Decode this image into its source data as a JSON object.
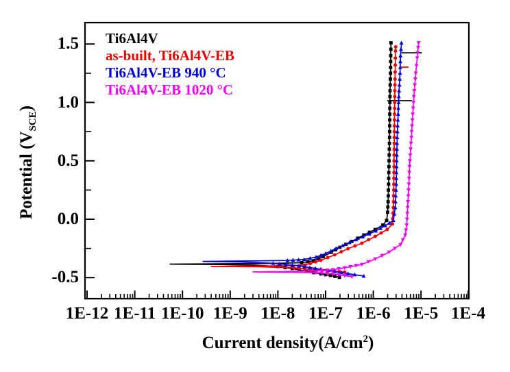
{
  "figure": {
    "background": "#ffffff"
  },
  "axis_titles": {
    "y_main": "Potential (V",
    "y_sub": "SCE",
    "y_close": ")",
    "x_main": "Current density(A/cm",
    "x_sup": "2",
    "x_close": ")"
  },
  "chart_data": {
    "type": "line",
    "title": "",
    "xlabel": "Current density(A/cm^2)",
    "ylabel": "Potential (V_SCE)",
    "x_axis": {
      "scale": "log",
      "min_exp": -12,
      "max_exp": -4,
      "ticks": [
        {
          "exp": -12,
          "label": "1E-12"
        },
        {
          "exp": -11,
          "label": "1E-11"
        },
        {
          "exp": -10,
          "label": "1E-10"
        },
        {
          "exp": -9,
          "label": "1E-9"
        },
        {
          "exp": -8,
          "label": "1E-8"
        },
        {
          "exp": -7,
          "label": "1E-7"
        },
        {
          "exp": -6,
          "label": "1E-6"
        },
        {
          "exp": -5,
          "label": "1E-5"
        },
        {
          "exp": -4,
          "label": "1E-4"
        }
      ]
    },
    "y_axis": {
      "range": [
        -0.68,
        1.68
      ],
      "major_ticks": [
        {
          "v": 1.5,
          "label": "1.5"
        },
        {
          "v": 1.0,
          "label": "1.0"
        },
        {
          "v": 0.5,
          "label": "0.5"
        },
        {
          "v": 0.0,
          "label": "0.0"
        },
        {
          "v": -0.5,
          "label": "-0.5"
        }
      ],
      "minor_ticks": [
        1.25,
        0.75,
        0.25,
        -0.25
      ]
    },
    "legend_position": "top-left-inside",
    "series": [
      {
        "name": "Ti6Al4V",
        "color": "#000000",
        "marker": "square",
        "ecorr_V": -0.385,
        "points": [
          [
            -6.71,
            -0.498
          ],
          [
            -6.9,
            -0.481
          ],
          [
            -7.1,
            -0.468
          ],
          [
            -7.4,
            -0.447
          ],
          [
            -7.7,
            -0.422
          ],
          [
            -8.0,
            -0.405
          ],
          [
            -8.5,
            -0.393
          ],
          [
            -9.2,
            -0.388
          ],
          [
            -10.0,
            -0.386
          ],
          [
            -10.26,
            -0.384
          ],
          [
            -9.0,
            -0.381
          ],
          [
            -8.0,
            -0.378
          ],
          [
            -7.5,
            -0.372
          ],
          [
            -7.25,
            -0.355
          ],
          [
            -7.05,
            -0.32
          ],
          [
            -6.88,
            -0.283
          ],
          [
            -6.7,
            -0.24
          ],
          [
            -6.45,
            -0.19
          ],
          [
            -6.2,
            -0.135
          ],
          [
            -5.96,
            -0.088
          ],
          [
            -5.8,
            -0.05
          ],
          [
            -5.72,
            -0.01
          ],
          [
            -5.7,
            0.06
          ],
          [
            -5.69,
            0.15
          ],
          [
            -5.68,
            0.3
          ],
          [
            -5.67,
            0.5
          ],
          [
            -5.66,
            0.7
          ],
          [
            -5.655,
            0.9
          ],
          [
            -5.65,
            1.1
          ],
          [
            -5.64,
            1.25
          ],
          [
            -5.635,
            1.4
          ],
          [
            -5.63,
            1.51
          ]
        ]
      },
      {
        "name": "as-built, Ti6Al4V-EB",
        "color": "#ee0000",
        "marker": "circle",
        "ecorr_V": -0.405,
        "points": [
          [
            -6.6,
            -0.452
          ],
          [
            -6.81,
            -0.446
          ],
          [
            -7.21,
            -0.434
          ],
          [
            -7.67,
            -0.416
          ],
          [
            -8.3,
            -0.408
          ],
          [
            -9.0,
            -0.405
          ],
          [
            -9.4,
            -0.404
          ],
          [
            -8.5,
            -0.401
          ],
          [
            -7.8,
            -0.398
          ],
          [
            -7.43,
            -0.392
          ],
          [
            -7.1,
            -0.352
          ],
          [
            -6.81,
            -0.305
          ],
          [
            -6.53,
            -0.252
          ],
          [
            -6.24,
            -0.205
          ],
          [
            -5.96,
            -0.147
          ],
          [
            -5.71,
            -0.088
          ],
          [
            -5.6,
            -0.041
          ],
          [
            -5.58,
            0.1
          ],
          [
            -5.57,
            0.3
          ],
          [
            -5.565,
            0.5
          ],
          [
            -5.56,
            0.7
          ],
          [
            -5.555,
            0.9
          ],
          [
            -5.55,
            1.05
          ],
          [
            -5.545,
            1.2
          ],
          [
            -5.54,
            1.32
          ],
          [
            -5.535,
            1.44
          ],
          [
            -5.53,
            1.475
          ]
        ]
      },
      {
        "name": "Ti6Al4V-EB 940 °C",
        "color": "#0000dd",
        "marker": "triangle-up",
        "ecorr_V": -0.36,
        "points": [
          [
            -6.2,
            -0.487
          ],
          [
            -6.39,
            -0.475
          ],
          [
            -6.67,
            -0.457
          ],
          [
            -7.1,
            -0.428
          ],
          [
            -7.56,
            -0.399
          ],
          [
            -8.1,
            -0.377
          ],
          [
            -8.8,
            -0.366
          ],
          [
            -9.57,
            -0.361
          ],
          [
            -8.6,
            -0.357
          ],
          [
            -7.8,
            -0.353
          ],
          [
            -7.45,
            -0.344
          ],
          [
            -7.2,
            -0.324
          ],
          [
            -7.0,
            -0.294
          ],
          [
            -6.78,
            -0.25
          ],
          [
            -6.5,
            -0.2
          ],
          [
            -6.22,
            -0.15
          ],
          [
            -5.95,
            -0.1
          ],
          [
            -5.75,
            -0.055
          ],
          [
            -5.58,
            -0.01
          ],
          [
            -5.54,
            0.1
          ],
          [
            -5.52,
            0.3
          ],
          [
            -5.51,
            0.5
          ],
          [
            -5.5,
            0.7
          ],
          [
            -5.48,
            0.9
          ],
          [
            -5.46,
            1.1
          ],
          [
            -5.44,
            1.25
          ],
          [
            -5.43,
            1.4
          ],
          [
            -5.41,
            1.51
          ]
        ]
      },
      {
        "name": "Ti6Al4V-EB 1020 °C",
        "color": "#f000f0",
        "marker": "triangle-down",
        "ecorr_V": -0.452,
        "points": [
          [
            -6.45,
            -0.492
          ],
          [
            -6.6,
            -0.483
          ],
          [
            -6.85,
            -0.468
          ],
          [
            -7.2,
            -0.458
          ],
          [
            -7.7,
            -0.454
          ],
          [
            -8.2,
            -0.452
          ],
          [
            -8.52,
            -0.451
          ],
          [
            -7.8,
            -0.447
          ],
          [
            -7.2,
            -0.442
          ],
          [
            -6.85,
            -0.433
          ],
          [
            -6.6,
            -0.416
          ],
          [
            -6.24,
            -0.387
          ],
          [
            -5.96,
            -0.34
          ],
          [
            -5.67,
            -0.282
          ],
          [
            -5.43,
            -0.217
          ],
          [
            -5.33,
            -0.135
          ],
          [
            -5.3,
            -0.05
          ],
          [
            -5.28,
            0.1
          ],
          [
            -5.26,
            0.25
          ],
          [
            -5.24,
            0.45
          ],
          [
            -5.21,
            0.65
          ],
          [
            -5.18,
            0.85
          ],
          [
            -5.15,
            1.05
          ],
          [
            -5.11,
            1.25
          ],
          [
            -5.08,
            1.38
          ],
          [
            -5.06,
            1.47
          ],
          [
            -5.05,
            1.51
          ]
        ]
      }
    ],
    "extra_segments": [
      {
        "color": "#000000",
        "V": 1.425,
        "logi": [
          -5.41,
          -4.98
        ]
      },
      {
        "color": "#ee0000",
        "V": 1.302,
        "logi": [
          -5.44,
          -5.26
        ]
      },
      {
        "color": "#000000",
        "V": 1.015,
        "logi": [
          -5.71,
          -5.19
        ]
      }
    ]
  }
}
